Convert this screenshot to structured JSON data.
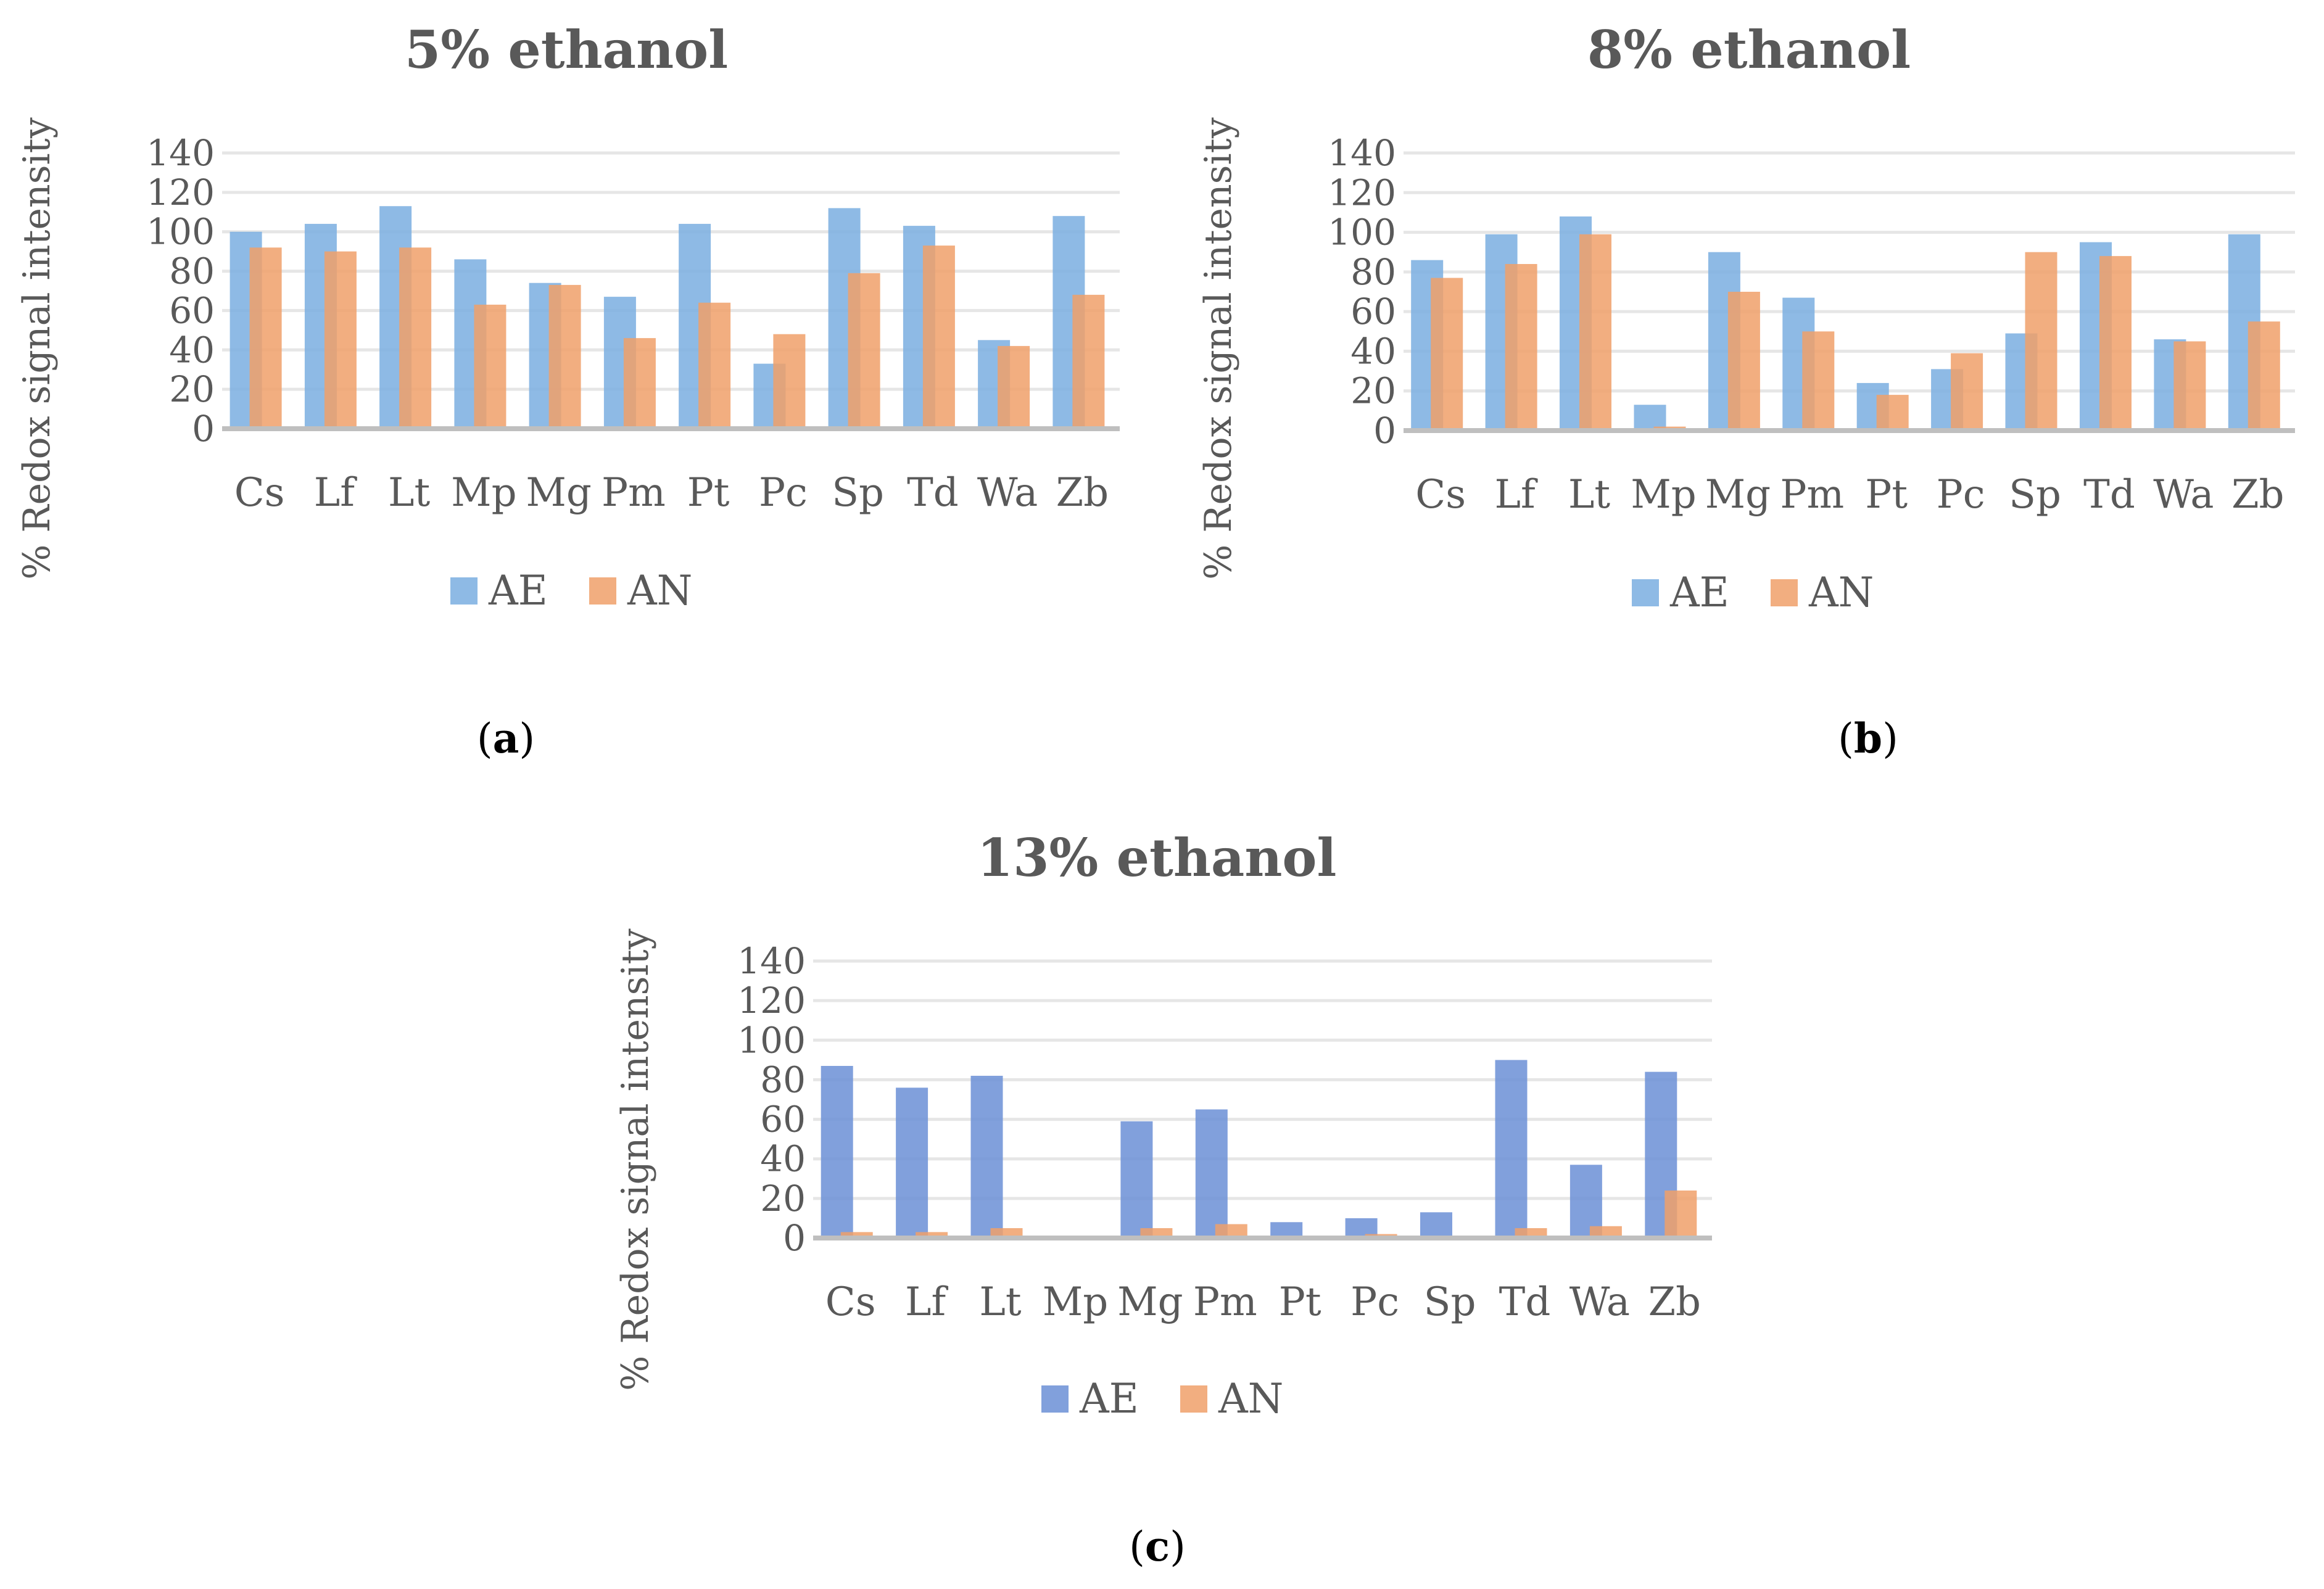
{
  "chart_data": [
    {
      "type": "bar",
      "title": "5% ethanol",
      "panel_label": "a",
      "xlabel": "",
      "ylabel": "% Redox signal intensity",
      "ylim": [
        0,
        140
      ],
      "yticks": [
        "0",
        "20",
        "40",
        "60",
        "80",
        "100",
        "120",
        "140"
      ],
      "categories": [
        "Cs",
        "Lf",
        "Lt",
        "Mp",
        "Mg",
        "Pm",
        "Pt",
        "Pc",
        "Sp",
        "Td",
        "Wa",
        "Zb"
      ],
      "series": [
        {
          "name": "AE",
          "color": "#7aaee0",
          "values": [
            100,
            104,
            113,
            86,
            74,
            67,
            104,
            33,
            112,
            103,
            45,
            108
          ]
        },
        {
          "name": "AN",
          "color": "#f0a06a",
          "values": [
            92,
            90,
            92,
            63,
            73,
            46,
            64,
            48,
            79,
            93,
            42,
            68
          ]
        }
      ]
    },
    {
      "type": "bar",
      "title": "8% ethanol",
      "panel_label": "b",
      "xlabel": "",
      "ylabel": "% Redox signal intensity",
      "ylim": [
        0,
        140
      ],
      "yticks": [
        "0",
        "20",
        "40",
        "60",
        "80",
        "100",
        "120",
        "140"
      ],
      "categories": [
        "Cs",
        "Lf",
        "Lt",
        "Mp",
        "Mg",
        "Pm",
        "Pt",
        "Pc",
        "Sp",
        "Td",
        "Wa",
        "Zb"
      ],
      "series": [
        {
          "name": "AE",
          "color": "#7aaee0",
          "values": [
            86,
            99,
            108,
            13,
            90,
            67,
            24,
            31,
            49,
            95,
            46,
            99
          ]
        },
        {
          "name": "AN",
          "color": "#f0a06a",
          "values": [
            77,
            84,
            99,
            2,
            70,
            50,
            18,
            39,
            90,
            88,
            45,
            55
          ]
        }
      ]
    },
    {
      "type": "bar",
      "title": "13% ethanol",
      "panel_label": "c",
      "xlabel": "",
      "ylabel": "% Redox signal intensity",
      "ylim": [
        0,
        140
      ],
      "yticks": [
        "0",
        "20",
        "40",
        "60",
        "80",
        "100",
        "120",
        "140"
      ],
      "categories": [
        "Cs",
        "Lf",
        "Lt",
        "Mp",
        "Mg",
        "Pm",
        "Pt",
        "Pc",
        "Sp",
        "Td",
        "Wa",
        "Zb"
      ],
      "series": [
        {
          "name": "AE",
          "color": "#6b8fd6",
          "values": [
            87,
            76,
            82,
            1,
            59,
            65,
            8,
            10,
            13,
            90,
            37,
            84
          ]
        },
        {
          "name": "AN",
          "color": "#f0a06a",
          "values": [
            3,
            3,
            5,
            0,
            5,
            7,
            0.5,
            2,
            0,
            5,
            6,
            24
          ]
        }
      ]
    }
  ]
}
